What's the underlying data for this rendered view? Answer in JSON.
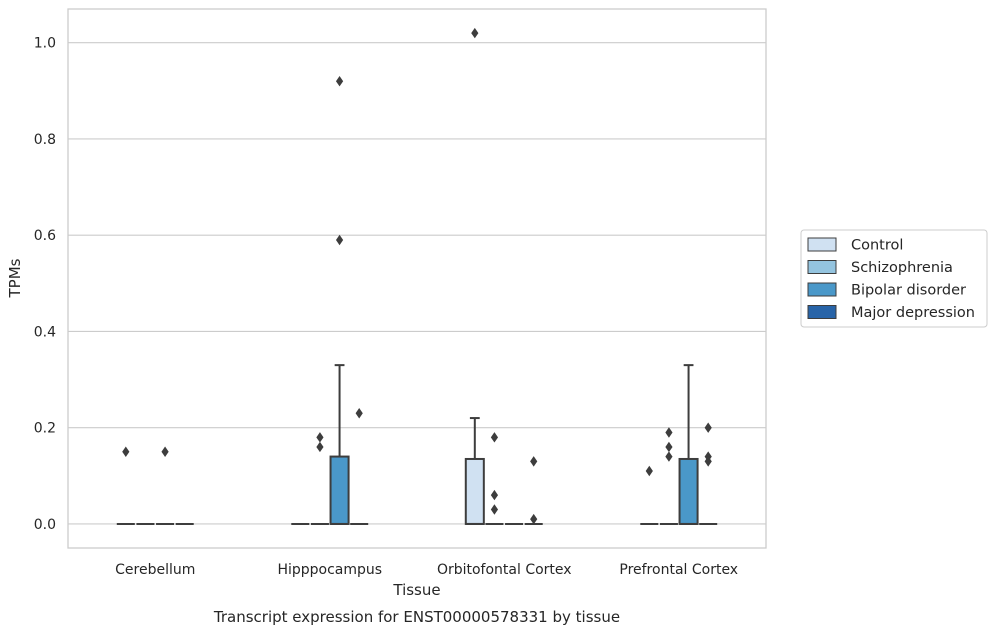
{
  "chart_data": {
    "type": "box",
    "title": "",
    "caption": "Transcript expression for ENST00000578331 by tissue",
    "xlabel": "Tissue",
    "ylabel": "TPMs",
    "categories": [
      "Cerebellum",
      "Hipppocampus",
      "Orbitofontal Cortex",
      "Prefrontal Cortex"
    ],
    "ylim": [
      -0.05,
      1.07
    ],
    "yticks": [
      0.0,
      0.2,
      0.4,
      0.6,
      0.8,
      1.0
    ],
    "ytick_labels": [
      "0.0",
      "0.2",
      "0.4",
      "0.6",
      "0.8",
      "1.0"
    ],
    "grid": true,
    "legend_position": "right",
    "colors": {
      "Control": "#d0e1f2",
      "Schizophrenia": "#94c4df",
      "Bipolar disorder": "#4a98c9",
      "Major depression": "#2864a8",
      "outline": "#3d3d3d",
      "grid": "#cccccc",
      "frame": "#cccccc"
    },
    "series": [
      {
        "name": "Control",
        "boxes": [
          {
            "q1": 0.0,
            "median": 0.0,
            "q3": 0.0,
            "whislo": 0.0,
            "whishi": 0.0,
            "fliers": [
              0.15
            ]
          },
          {
            "q1": 0.0,
            "median": 0.0,
            "q3": 0.0,
            "whislo": 0.0,
            "whishi": 0.0,
            "fliers": []
          },
          {
            "q1": 0.0,
            "median": 0.0,
            "q3": 0.135,
            "whislo": 0.0,
            "whishi": 0.22,
            "fliers": [
              1.02
            ]
          },
          {
            "q1": 0.0,
            "median": 0.0,
            "q3": 0.0,
            "whislo": 0.0,
            "whishi": 0.0,
            "fliers": [
              0.11
            ]
          }
        ]
      },
      {
        "name": "Schizophrenia",
        "boxes": [
          {
            "q1": 0.0,
            "median": 0.0,
            "q3": 0.0,
            "whislo": 0.0,
            "whishi": 0.0,
            "fliers": []
          },
          {
            "q1": 0.0,
            "median": 0.0,
            "q3": 0.0,
            "whislo": 0.0,
            "whishi": 0.0,
            "fliers": [
              0.18,
              0.16
            ]
          },
          {
            "q1": 0.0,
            "median": 0.0,
            "q3": 0.0,
            "whislo": 0.0,
            "whishi": 0.0,
            "fliers": [
              0.18,
              0.06,
              0.03
            ]
          },
          {
            "q1": 0.0,
            "median": 0.0,
            "q3": 0.0,
            "whislo": 0.0,
            "whishi": 0.0,
            "fliers": [
              0.19,
              0.16,
              0.14
            ]
          }
        ]
      },
      {
        "name": "Bipolar disorder",
        "boxes": [
          {
            "q1": 0.0,
            "median": 0.0,
            "q3": 0.0,
            "whislo": 0.0,
            "whishi": 0.0,
            "fliers": [
              0.15
            ]
          },
          {
            "q1": 0.0,
            "median": 0.0,
            "q3": 0.14,
            "whislo": 0.0,
            "whishi": 0.33,
            "fliers": [
              0.92,
              0.59
            ]
          },
          {
            "q1": 0.0,
            "median": 0.0,
            "q3": 0.0,
            "whislo": 0.0,
            "whishi": 0.0,
            "fliers": []
          },
          {
            "q1": 0.0,
            "median": 0.0,
            "q3": 0.135,
            "whislo": 0.0,
            "whishi": 0.33,
            "fliers": []
          }
        ]
      },
      {
        "name": "Major depression",
        "boxes": [
          {
            "q1": 0.0,
            "median": 0.0,
            "q3": 0.0,
            "whislo": 0.0,
            "whishi": 0.0,
            "fliers": []
          },
          {
            "q1": 0.0,
            "median": 0.0,
            "q3": 0.0,
            "whislo": 0.0,
            "whishi": 0.0,
            "fliers": [
              0.23
            ]
          },
          {
            "q1": 0.0,
            "median": 0.0,
            "q3": 0.0,
            "whislo": 0.0,
            "whishi": 0.0,
            "fliers": [
              0.13,
              0.01
            ]
          },
          {
            "q1": 0.0,
            "median": 0.0,
            "q3": 0.0,
            "whislo": 0.0,
            "whishi": 0.0,
            "fliers": [
              0.2,
              0.14,
              0.13
            ]
          }
        ]
      }
    ]
  }
}
